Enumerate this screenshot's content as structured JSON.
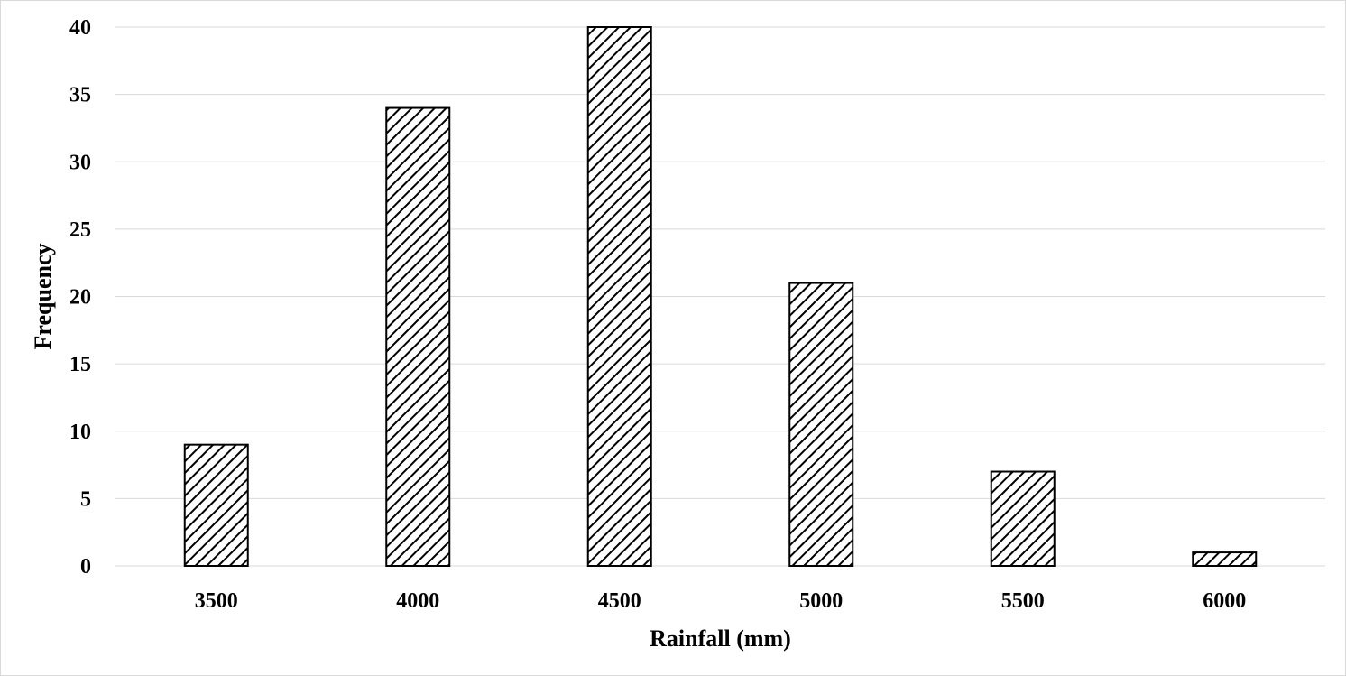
{
  "chart_data": {
    "type": "bar",
    "title": "",
    "xlabel": "Rainfall (mm)",
    "ylabel": "Frequency",
    "categories": [
      "3500",
      "4000",
      "4500",
      "5000",
      "5500",
      "6000"
    ],
    "values": [
      9,
      34,
      40,
      21,
      7,
      1
    ],
    "ylim": [
      0,
      40
    ],
    "yticks": [
      "0",
      "5",
      "10",
      "15",
      "20",
      "25",
      "30",
      "35",
      "40"
    ],
    "grid": true,
    "legend": "none",
    "bar_fill": "diagonal hatch",
    "colors": {
      "bar_stroke": "#000000",
      "hatch": "#000000",
      "gridline": "#d9d9d9",
      "background": "#ffffff"
    }
  }
}
